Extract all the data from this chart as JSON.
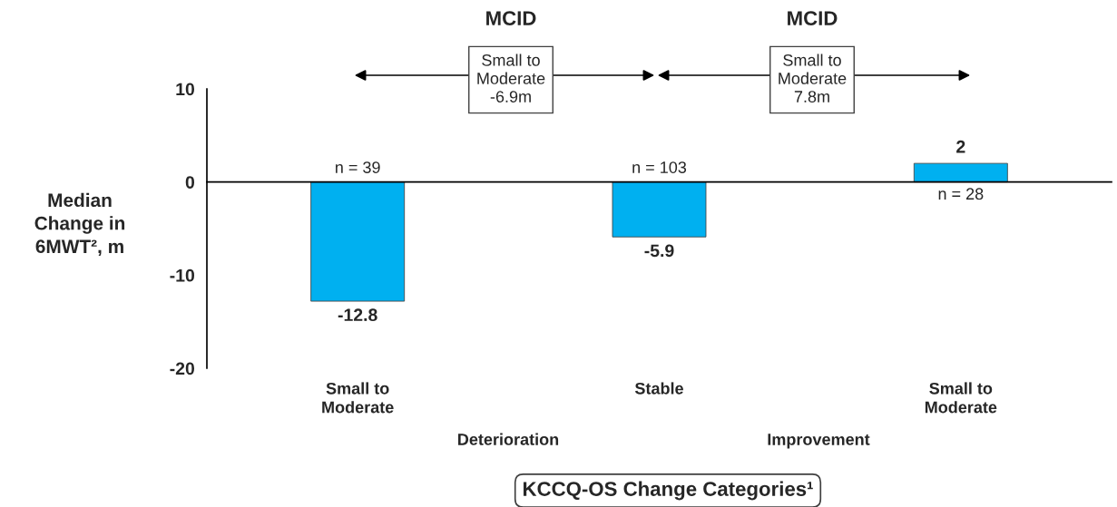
{
  "chart_data": {
    "type": "bar",
    "categories": [
      "Small to\nModerate",
      "Stable",
      "Small to\nModerate"
    ],
    "values": [
      -12.8,
      -5.9,
      2
    ],
    "color": "#00b0f0",
    "value_labels": [
      "-12.8",
      "-5.9",
      "2"
    ],
    "ylim": [
      -20,
      10
    ],
    "yticks": [
      -20,
      -10,
      0,
      10
    ],
    "ylabel": "Median\nChange in\n6MWT², m",
    "xlabel": "KCCQ-OS Change Categories¹",
    "annotations": [
      "n = 39",
      "n = 103",
      "n = 28",
      "MCID",
      "Small to\nModerate\n-6.9m",
      "MCID",
      "Small to\nModerate\n7.8m",
      "Deterioration",
      "Improvement"
    ]
  }
}
